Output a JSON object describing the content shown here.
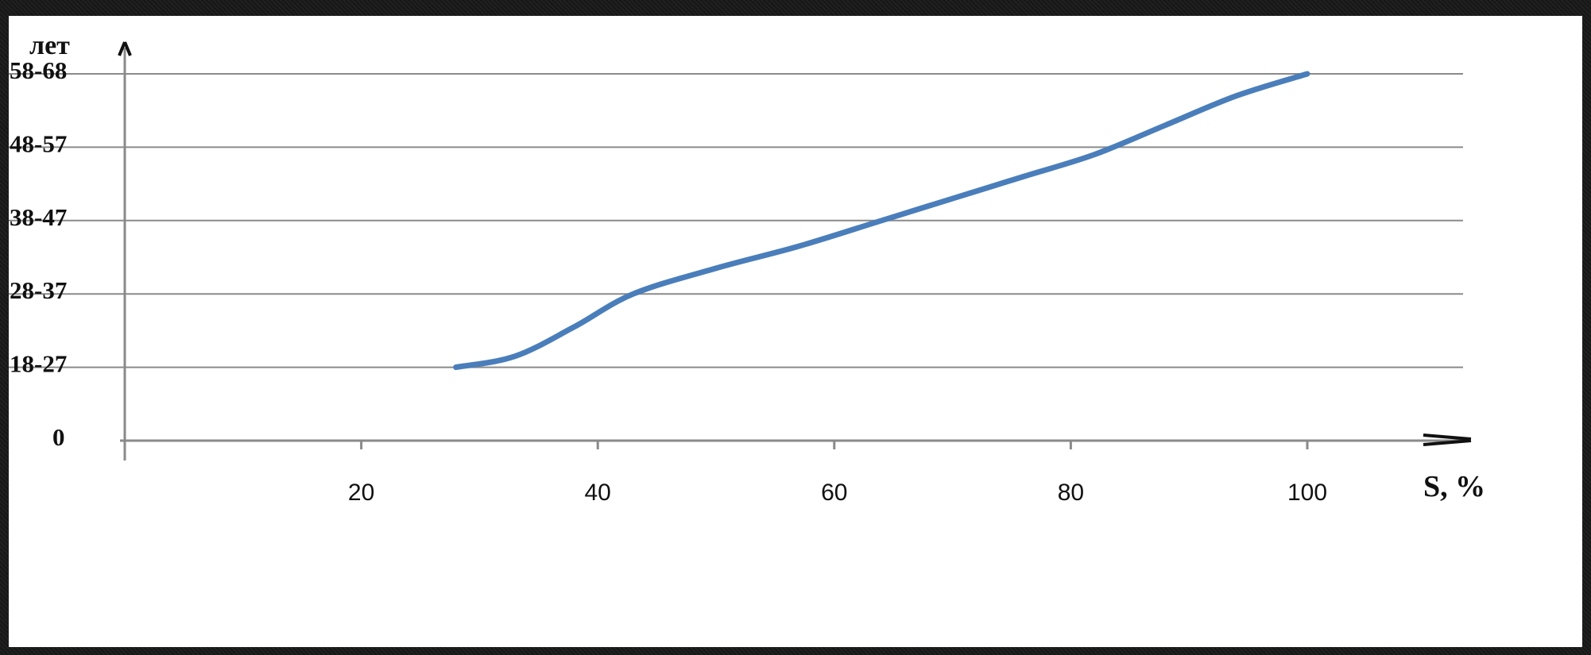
{
  "chart_data": {
    "type": "line",
    "ylabel": "лет",
    "xlabel": "S, %",
    "x_ticks": [
      "20",
      "40",
      "60",
      "80",
      "100"
    ],
    "y_categories": [
      "0",
      "18-27",
      "28-37",
      "38-47",
      "48-57",
      "58-68"
    ],
    "xlim": [
      0,
      112
    ],
    "series": [
      {
        "color": "#4a7ebb",
        "points": [
          {
            "x": 28,
            "y": 1.0
          },
          {
            "x": 33,
            "y": 1.15
          },
          {
            "x": 38,
            "y": 1.55
          },
          {
            "x": 43,
            "y": 2.0
          },
          {
            "x": 50,
            "y": 2.35
          },
          {
            "x": 57,
            "y": 2.65
          },
          {
            "x": 64,
            "y": 3.0
          },
          {
            "x": 70,
            "y": 3.3
          },
          {
            "x": 76,
            "y": 3.6
          },
          {
            "x": 82,
            "y": 3.9
          },
          {
            "x": 88,
            "y": 4.3
          },
          {
            "x": 94,
            "y": 4.7
          },
          {
            "x": 100,
            "y": 5.0
          }
        ]
      }
    ],
    "grid": true
  }
}
